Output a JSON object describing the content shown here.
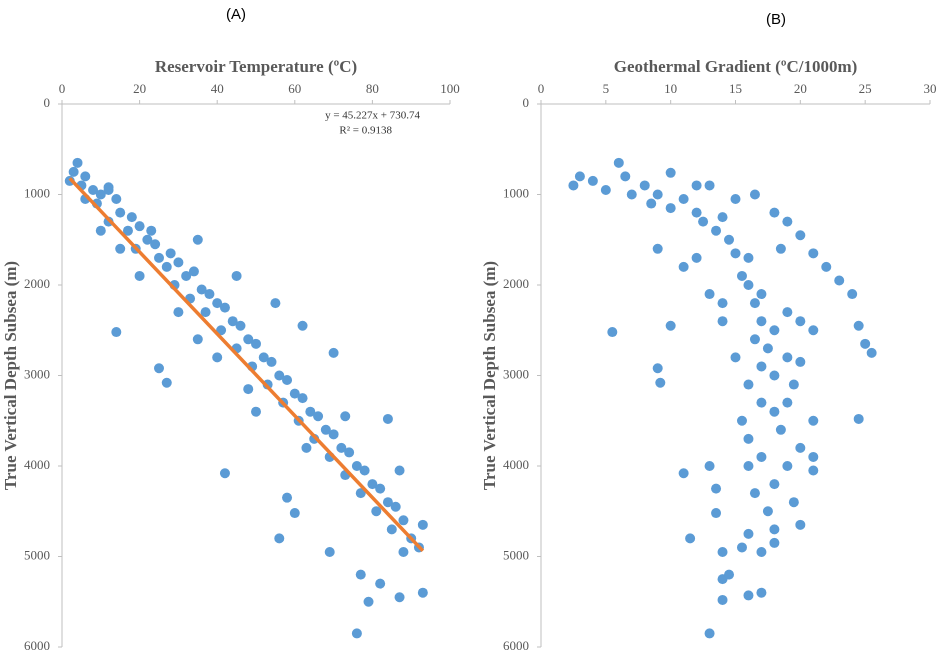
{
  "chart_data": [
    {
      "type": "scatter",
      "panel": "(A)",
      "x_label": "Reservoir Temperature (ºC)",
      "y_label": "True Vertical Depth Subsea (m)",
      "xlim": [
        0,
        100
      ],
      "xticks": [
        0,
        20,
        40,
        60,
        80,
        100
      ],
      "ylim": [
        0,
        6000
      ],
      "yticks": [
        0,
        1000,
        2000,
        3000,
        4000,
        5000,
        6000
      ],
      "y_inverted": true,
      "x_axis_position": "top",
      "color": "#5b9bd5",
      "x": [
        3,
        4,
        2,
        5,
        6,
        8,
        10,
        12,
        9,
        14,
        15,
        12,
        18,
        17,
        20,
        22,
        19,
        24,
        25,
        28,
        27,
        30,
        32,
        29,
        34,
        36,
        33,
        38,
        40,
        37,
        42,
        44,
        41,
        46,
        48,
        45,
        50,
        52,
        49,
        54,
        56,
        53,
        58,
        60,
        57,
        62,
        64,
        61,
        66,
        68,
        65,
        70,
        72,
        69,
        74,
        76,
        73,
        78,
        80,
        77,
        82,
        84,
        81,
        86,
        88,
        85,
        90,
        92,
        93,
        88,
        93,
        77,
        79,
        76,
        87,
        82,
        69,
        56,
        42,
        14,
        27,
        25,
        62,
        70,
        55,
        45,
        58,
        60,
        84,
        73,
        87,
        10,
        20,
        15,
        35,
        40,
        50,
        63,
        48,
        30,
        23,
        35,
        12,
        6
      ],
      "values": [
        750,
        650,
        850,
        900,
        800,
        950,
        1000,
        920,
        1100,
        1050,
        1200,
        1300,
        1250,
        1400,
        1350,
        1500,
        1600,
        1550,
        1700,
        1650,
        1800,
        1750,
        1900,
        2000,
        1850,
        2050,
        2150,
        2100,
        2200,
        2300,
        2250,
        2400,
        2500,
        2450,
        2600,
        2700,
        2650,
        2800,
        2900,
        2850,
        3000,
        3100,
        3050,
        3200,
        3300,
        3250,
        3400,
        3500,
        3450,
        3600,
        3700,
        3650,
        3800,
        3900,
        3850,
        4000,
        4100,
        4050,
        4200,
        4300,
        4250,
        4400,
        4500,
        4450,
        4600,
        4700,
        4800,
        4900,
        4650,
        4950,
        5400,
        5200,
        5500,
        5850,
        5450,
        5300,
        4950,
        4800,
        4080,
        2520,
        3080,
        2920,
        2450,
        2750,
        2200,
        1900,
        4350,
        4520,
        3480,
        3450,
        4050,
        1400,
        1900,
        1600,
        2600,
        2800,
        3400,
        3800,
        3150,
        2300,
        1400,
        1500,
        950,
        1050
      ],
      "trendline": {
        "label": "y = 45.227x + 730.74",
        "r2_label": "R² = 0.9138",
        "slope": 45.227,
        "intercept": 730.74,
        "x": [
          2,
          93
        ],
        "color": "#ed7d31"
      }
    },
    {
      "type": "scatter",
      "panel": "(B)",
      "x_label": "Geothermal Gradient (ºC/1000m)",
      "y_label": "True Vertical Depth Subsea (m)",
      "xlim": [
        0,
        30
      ],
      "xticks": [
        0,
        5,
        10,
        15,
        20,
        25,
        30
      ],
      "ylim": [
        0,
        6000
      ],
      "yticks": [
        0,
        1000,
        2000,
        3000,
        4000,
        5000,
        6000
      ],
      "y_inverted": true,
      "x_axis_position": "top",
      "color": "#5b9bd5",
      "x": [
        2.5,
        3,
        4,
        5,
        6,
        6.5,
        7,
        8,
        8.5,
        9,
        10,
        10,
        11,
        12,
        12.5,
        13,
        13.5,
        14,
        14.5,
        15,
        15,
        16,
        15.5,
        16,
        16.5,
        17,
        17,
        16.5,
        17.5,
        18,
        17,
        18,
        16,
        17,
        18,
        15.5,
        16,
        18.5,
        17,
        16,
        18,
        16.5,
        17.5,
        18,
        18,
        17,
        15.5,
        16,
        13,
        13.5,
        13.5,
        11.5,
        14,
        14,
        14.5,
        14,
        17,
        16,
        13,
        11,
        9,
        9.2,
        5.5,
        10,
        20,
        21,
        21,
        21,
        19,
        19.5,
        20,
        24.5,
        24.5,
        25,
        25.5,
        24,
        23,
        22,
        21,
        20,
        19,
        18,
        16.5,
        19,
        20,
        21,
        19,
        19.5,
        18.5,
        12,
        11,
        9,
        13,
        14,
        15,
        14,
        20,
        19,
        12
      ],
      "values": [
        900,
        800,
        850,
        950,
        650,
        800,
        1000,
        900,
        1100,
        1000,
        1150,
        760,
        1050,
        1200,
        1300,
        900,
        1400,
        1250,
        1500,
        1050,
        1650,
        1700,
        1900,
        2000,
        2200,
        2100,
        2400,
        2600,
        2700,
        2500,
        2900,
        3000,
        3100,
        3300,
        3400,
        3500,
        3700,
        3600,
        3900,
        4000,
        4200,
        4300,
        4500,
        4700,
        4850,
        4950,
        4900,
        4750,
        4000,
        4250,
        4520,
        4800,
        4950,
        5250,
        5200,
        5480,
        5400,
        5430,
        5850,
        4080,
        2920,
        3080,
        2520,
        2450,
        3800,
        3500,
        3900,
        4050,
        4000,
        4400,
        4650,
        3480,
        2450,
        2650,
        2750,
        2100,
        1950,
        1800,
        1650,
        1450,
        1300,
        1200,
        1000,
        2300,
        2400,
        2500,
        2800,
        3100,
        1600,
        1700,
        1800,
        1600,
        2100,
        2400,
        2800,
        2200,
        2850,
        3300,
        900
      ]
    }
  ]
}
